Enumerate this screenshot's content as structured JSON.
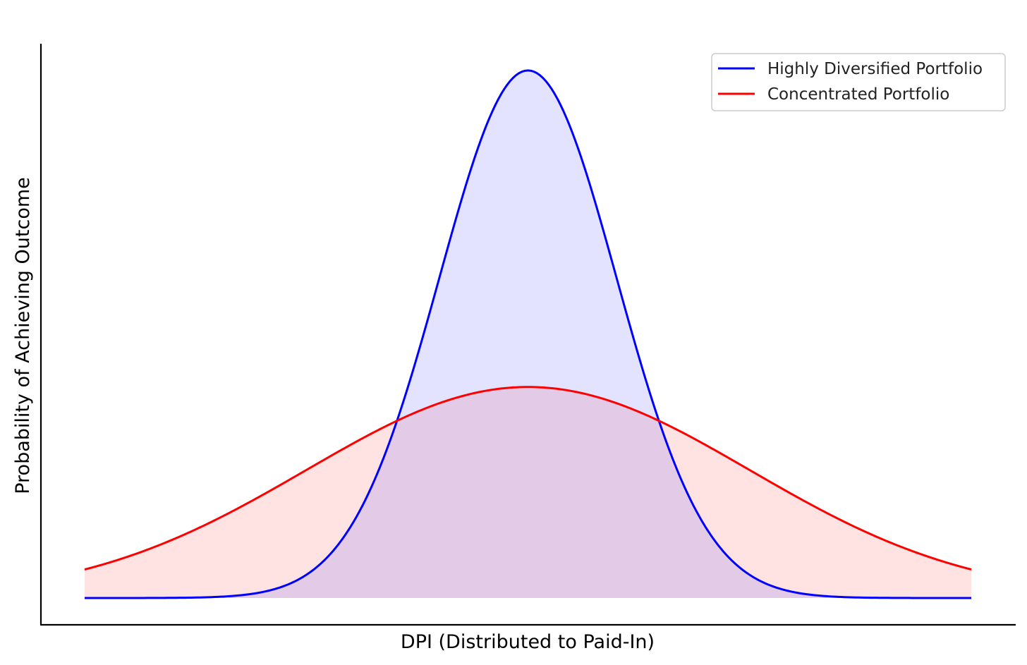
{
  "chart_data": {
    "type": "area",
    "title": "",
    "xlabel": "DPI (Distributed to Paid-In)",
    "ylabel": "Probability of Achieving Outcome",
    "xlim": [
      -5,
      5
    ],
    "ylim": [
      -0.018,
      0.38
    ],
    "x_ticks_shown": false,
    "y_ticks_shown": false,
    "grid": false,
    "legend": "top-right",
    "series": [
      {
        "name": "Highly Diversified Portfolio",
        "color": "#0000ff",
        "fill_color": "#e2e4fb",
        "distribution": "normal",
        "mean": 0,
        "std": 1,
        "x": [
          -5,
          -4,
          -3,
          -2.5,
          -2,
          -1.5,
          -1,
          -0.5,
          0,
          0.5,
          1,
          1.5,
          2,
          2.5,
          3,
          4,
          5
        ],
        "values": [
          0.0,
          0.0001,
          0.0044,
          0.0175,
          0.054,
          0.1295,
          0.242,
          0.3521,
          0.3989,
          0.3521,
          0.242,
          0.1295,
          0.054,
          0.0175,
          0.0044,
          0.0001,
          0.0
        ]
      },
      {
        "name": "Concentrated Portfolio",
        "color": "#ff0000",
        "fill_color": "#fde2e4",
        "distribution": "normal",
        "mean": 0,
        "std": 2.5,
        "x": [
          -5,
          -4,
          -3,
          -2.5,
          -2,
          -1.5,
          -1,
          -0.5,
          0,
          0.5,
          1,
          1.5,
          2,
          2.5,
          3,
          4,
          5
        ],
        "values": [
          0.0216,
          0.0444,
          0.0777,
          0.0968,
          0.1158,
          0.1333,
          0.1473,
          0.1564,
          0.1596,
          0.1564,
          0.1473,
          0.1333,
          0.1158,
          0.0968,
          0.0777,
          0.0444,
          0.0216
        ]
      }
    ]
  }
}
